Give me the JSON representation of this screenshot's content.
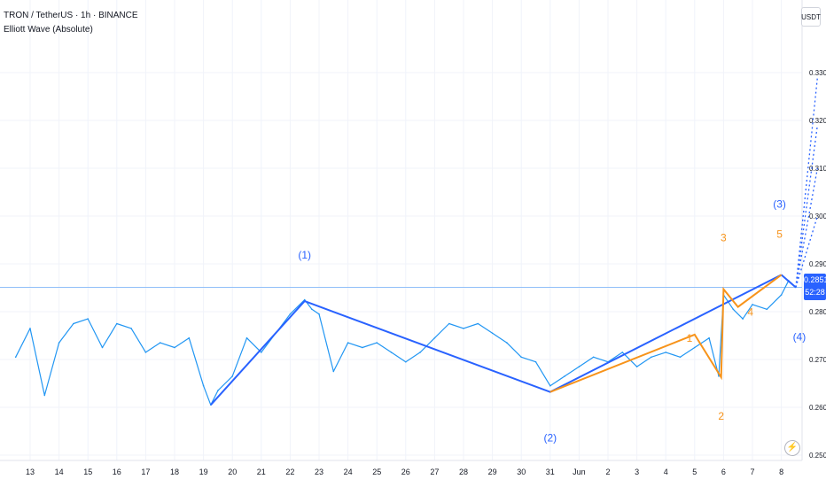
{
  "header": {
    "symbol_line": "TRON / TetherUS · 1h · BINANCE",
    "indicator_line": "Elliott Wave (Absolute)"
  },
  "price_scale": {
    "unit_label": "USDT",
    "ticks": [
      "0.3300",
      "0.3200",
      "0.3100",
      "0.3000",
      "0.2900",
      "0.2800",
      "0.2700",
      "0.2600",
      "0.2500"
    ]
  },
  "current_price": {
    "value": "0.2851",
    "countdown": "52:28"
  },
  "time_axis": {
    "labels": [
      "13",
      "14",
      "15",
      "16",
      "17",
      "18",
      "19",
      "20",
      "21",
      "22",
      "23",
      "24",
      "25",
      "26",
      "27",
      "28",
      "29",
      "30",
      "31",
      "Jun",
      "2",
      "3",
      "4",
      "5",
      "6",
      "7",
      "8"
    ]
  },
  "wave_labels": {
    "primary": [
      "(1)",
      "(2)",
      "(3)",
      "(4)"
    ],
    "sub": [
      "1",
      "2",
      "3",
      "4",
      "5"
    ]
  },
  "colors": {
    "price_line": "#2196f3",
    "primary_wave": "#2962ff",
    "sub_wave": "#f7931a",
    "projection": "#2962ff",
    "price_guide": "#90bff9"
  },
  "icons": {
    "bolt": "lightning-icon"
  },
  "chart_data": {
    "type": "line",
    "title": "TRON / TetherUS · 1h · BINANCE",
    "ylim": [
      0.25,
      0.334
    ],
    "x_range": [
      "May 12",
      "Jun 8"
    ],
    "grid": true,
    "series": [
      {
        "name": "",
        "x": [
          "May 12 12:00",
          "May 13 00:00",
          "May 13 12:00",
          "May 14 00:00",
          "May 14 12:00",
          "May 15 00:00",
          "May 15 12:00",
          "May 16 00:00",
          "May 16 12:00",
          "May 17 00:00",
          "May 17 12:00",
          "May 18 00:00",
          "May 18 12:00",
          "May 19 00:00",
          "May 19 06:00",
          "May 19 12:00",
          "May 20 00:00",
          "May 20 12:00",
          "May 21 00:00",
          "May 21 12:00",
          "May 22 00:00",
          "May 22 12:00",
          "May 22 18:00",
          "May 23 00:00",
          "May 23 12:00",
          "May 24 00:00",
          "May 24 12:00",
          "May 25 00:00",
          "May 25 12:00",
          "May 26 00:00",
          "May 26 12:00",
          "May 27 00:00",
          "May 27 12:00",
          "May 28 00:00",
          "May 28 12:00",
          "May 29 00:00",
          "May 29 12:00",
          "May 30 00:00",
          "May 30 12:00",
          "May 31 00:00",
          "May 31 12:00",
          "Jun 1 00:00",
          "Jun 1 12:00",
          "Jun 2 00:00",
          "Jun 2 12:00",
          "Jun 3 00:00",
          "Jun 3 12:00",
          "Jun 4 00:00",
          "Jun 4 12:00",
          "Jun 5 00:00",
          "Jun 5 12:00",
          "Jun 5 20:00",
          "Jun 6 00:00",
          "Jun 6 08:00",
          "Jun 6 16:00",
          "Jun 7 00:00",
          "Jun 7 12:00",
          "Jun 8 00:00",
          "Jun 8 06:00",
          "Jun 8 12:00"
        ],
        "values": [
          0.2705,
          0.2765,
          0.2625,
          0.2735,
          0.2775,
          0.2785,
          0.2725,
          0.2775,
          0.2765,
          0.2715,
          0.2735,
          0.2725,
          0.2745,
          0.2645,
          0.2605,
          0.2635,
          0.2665,
          0.2745,
          0.2715,
          0.2755,
          0.2795,
          0.2825,
          0.2805,
          0.2795,
          0.2675,
          0.2735,
          0.2725,
          0.2735,
          0.2715,
          0.2695,
          0.2715,
          0.2745,
          0.2775,
          0.2765,
          0.2775,
          0.2755,
          0.2735,
          0.2705,
          0.2695,
          0.2645,
          0.2665,
          0.2685,
          0.2705,
          0.2695,
          0.2715,
          0.2685,
          0.2705,
          0.2715,
          0.2705,
          0.2725,
          0.2745,
          0.2665,
          0.2835,
          0.2805,
          0.2785,
          0.2815,
          0.2805,
          0.2835,
          0.2865,
          0.2851
        ]
      }
    ],
    "elliott_primary": [
      {
        "label": "",
        "x": "May 19 06:00",
        "y": 0.2605
      },
      {
        "label": "(1)",
        "x": "May 22 12:00",
        "y": 0.2822
      },
      {
        "label": "(2)",
        "x": "May 31 00:00",
        "y": 0.2632
      },
      {
        "label": "(3)",
        "x": "Jun 8 00:00",
        "y": 0.2877
      },
      {
        "label": "(4)",
        "x": "Jun 8 12:00",
        "y": 0.2851
      }
    ],
    "elliott_sub": [
      {
        "label": "",
        "x": "May 31 00:00",
        "y": 0.2632
      },
      {
        "label": "1",
        "x": "Jun 5 00:00",
        "y": 0.2752
      },
      {
        "label": "2",
        "x": "Jun 5 22:00",
        "y": 0.2663
      },
      {
        "label": "3",
        "x": "Jun 6 00:00",
        "y": 0.2847
      },
      {
        "label": "4",
        "x": "Jun 6 12:00",
        "y": 0.281
      },
      {
        "label": "5",
        "x": "Jun 8 00:00",
        "y": 0.2877
      }
    ],
    "projections": [
      {
        "x": "Jun 9 06:00",
        "y": 0.329
      },
      {
        "x": "Jun 9 06:00",
        "y": 0.319
      },
      {
        "x": "Jun 9 06:00",
        "y": 0.31
      },
      {
        "x": "Jun 9 06:00",
        "y": 0.3
      }
    ]
  }
}
